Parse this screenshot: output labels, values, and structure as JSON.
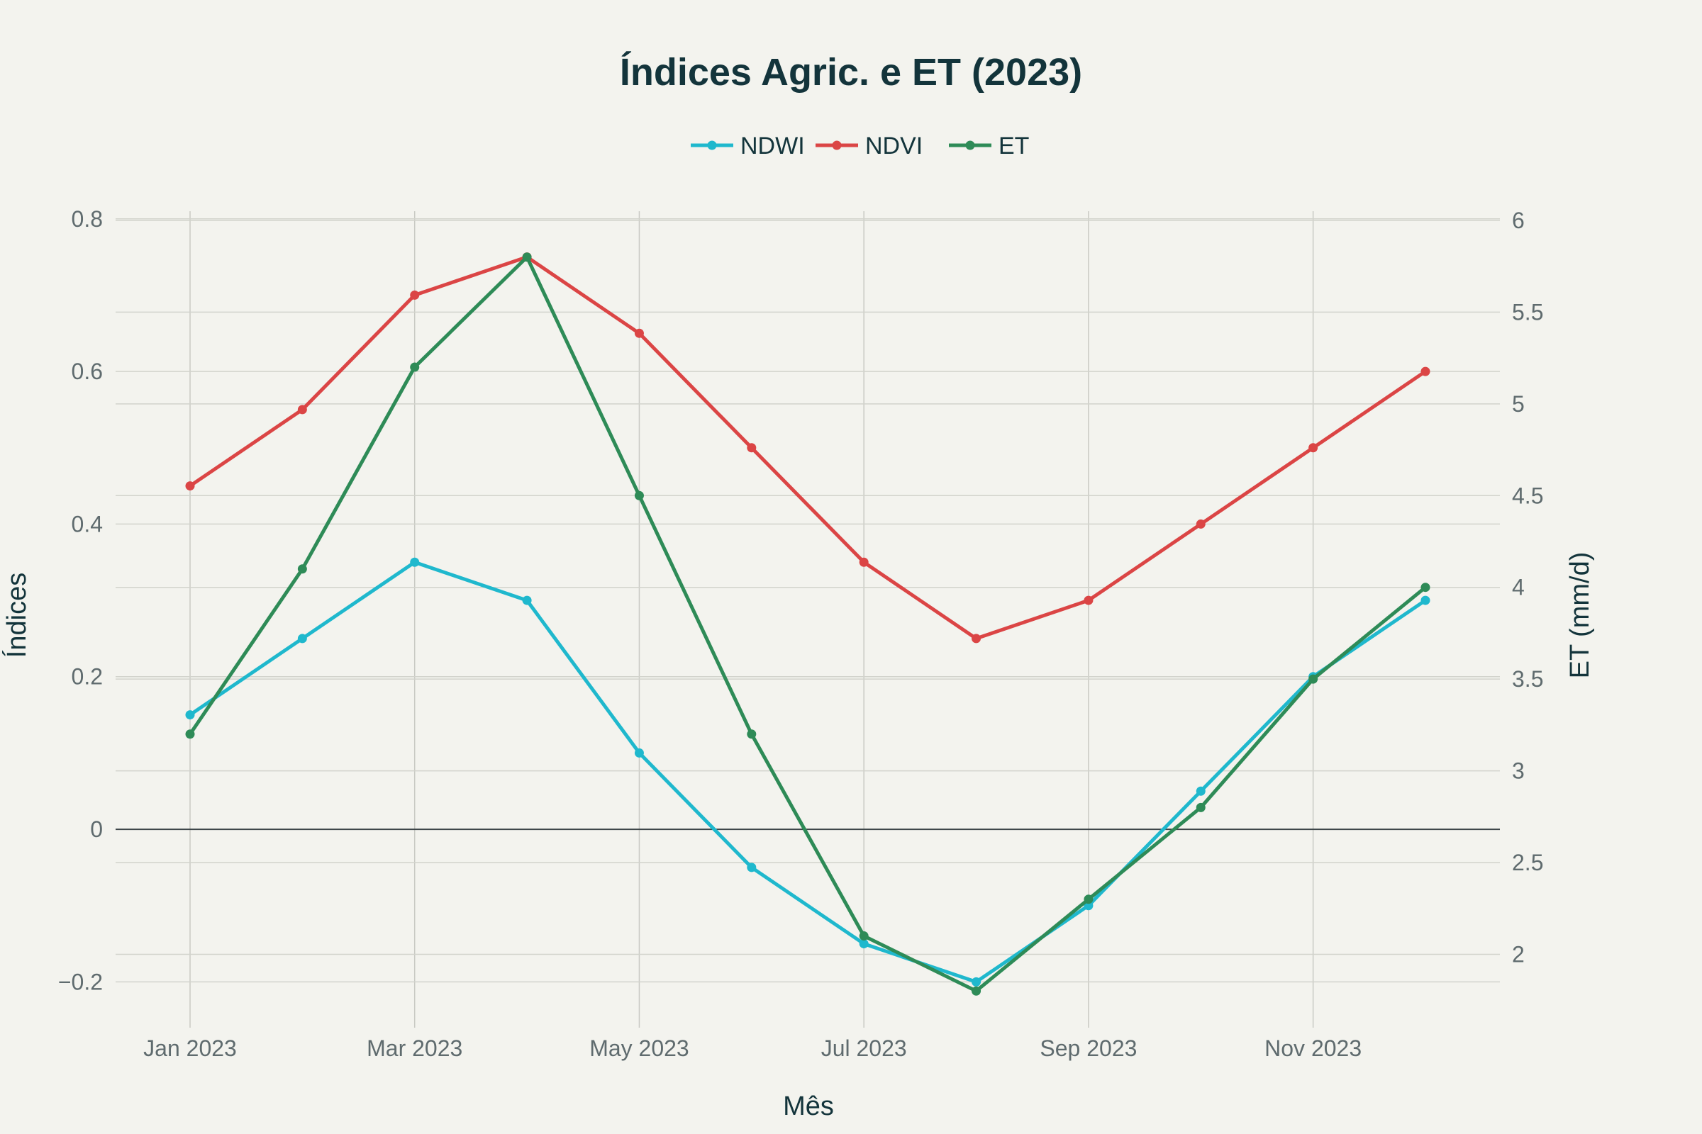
{
  "chart_data": {
    "type": "line",
    "title": "Índices Agric. e ET (2023)",
    "xlabel": "Mês",
    "ylabel": "Índices",
    "y2label": "ET (mm/d)",
    "x": [
      "2023-01",
      "2023-02",
      "2023-03",
      "2023-04",
      "2023-05",
      "2023-06",
      "2023-07",
      "2023-08",
      "2023-09",
      "2023-10",
      "2023-11",
      "2023-12"
    ],
    "x_ticks": [
      {
        "month": "2023-01",
        "label": "Jan 2023"
      },
      {
        "month": "2023-03",
        "label": "Mar 2023"
      },
      {
        "month": "2023-05",
        "label": "May 2023"
      },
      {
        "month": "2023-07",
        "label": "Jul 2023"
      },
      {
        "month": "2023-09",
        "label": "Sep 2023"
      },
      {
        "month": "2023-11",
        "label": "Nov 2023"
      }
    ],
    "ylim": [
      -0.26,
      0.81
    ],
    "y_ticks": [
      {
        "value": -0.2,
        "label": "−0.2"
      },
      {
        "value": 0,
        "label": "0"
      },
      {
        "value": 0.2,
        "label": "0.2"
      },
      {
        "value": 0.4,
        "label": "0.4"
      },
      {
        "value": 0.6,
        "label": "0.6"
      },
      {
        "value": 0.8,
        "label": "0.8"
      }
    ],
    "y2lim": [
      1.6,
      6.05
    ],
    "y2_ticks": [
      {
        "value": 2,
        "label": "2"
      },
      {
        "value": 2.5,
        "label": "2.5"
      },
      {
        "value": 3,
        "label": "3"
      },
      {
        "value": 3.5,
        "label": "3.5"
      },
      {
        "value": 4,
        "label": "4"
      },
      {
        "value": 4.5,
        "label": "4.5"
      },
      {
        "value": 5,
        "label": "5"
      },
      {
        "value": 5.5,
        "label": "5.5"
      },
      {
        "value": 6,
        "label": "6"
      }
    ],
    "legend_position": "top-center",
    "grid": true,
    "series": [
      {
        "name": "NDWI",
        "axis": "y",
        "color": "#1fb8cd",
        "values": [
          0.15,
          0.25,
          0.35,
          0.3,
          0.1,
          -0.05,
          -0.15,
          -0.2,
          -0.1,
          0.05,
          0.2,
          0.3
        ]
      },
      {
        "name": "NDVI",
        "axis": "y",
        "color": "#db4545",
        "values": [
          0.45,
          0.55,
          0.7,
          0.75,
          0.65,
          0.5,
          0.35,
          0.25,
          0.3,
          0.4,
          0.5,
          0.6
        ]
      },
      {
        "name": "ET",
        "axis": "y2",
        "color": "#2e8b57",
        "values": [
          3.2,
          4.1,
          5.2,
          5.8,
          4.5,
          3.2,
          2.1,
          1.8,
          2.3,
          2.8,
          3.5,
          4.0
        ]
      }
    ]
  }
}
